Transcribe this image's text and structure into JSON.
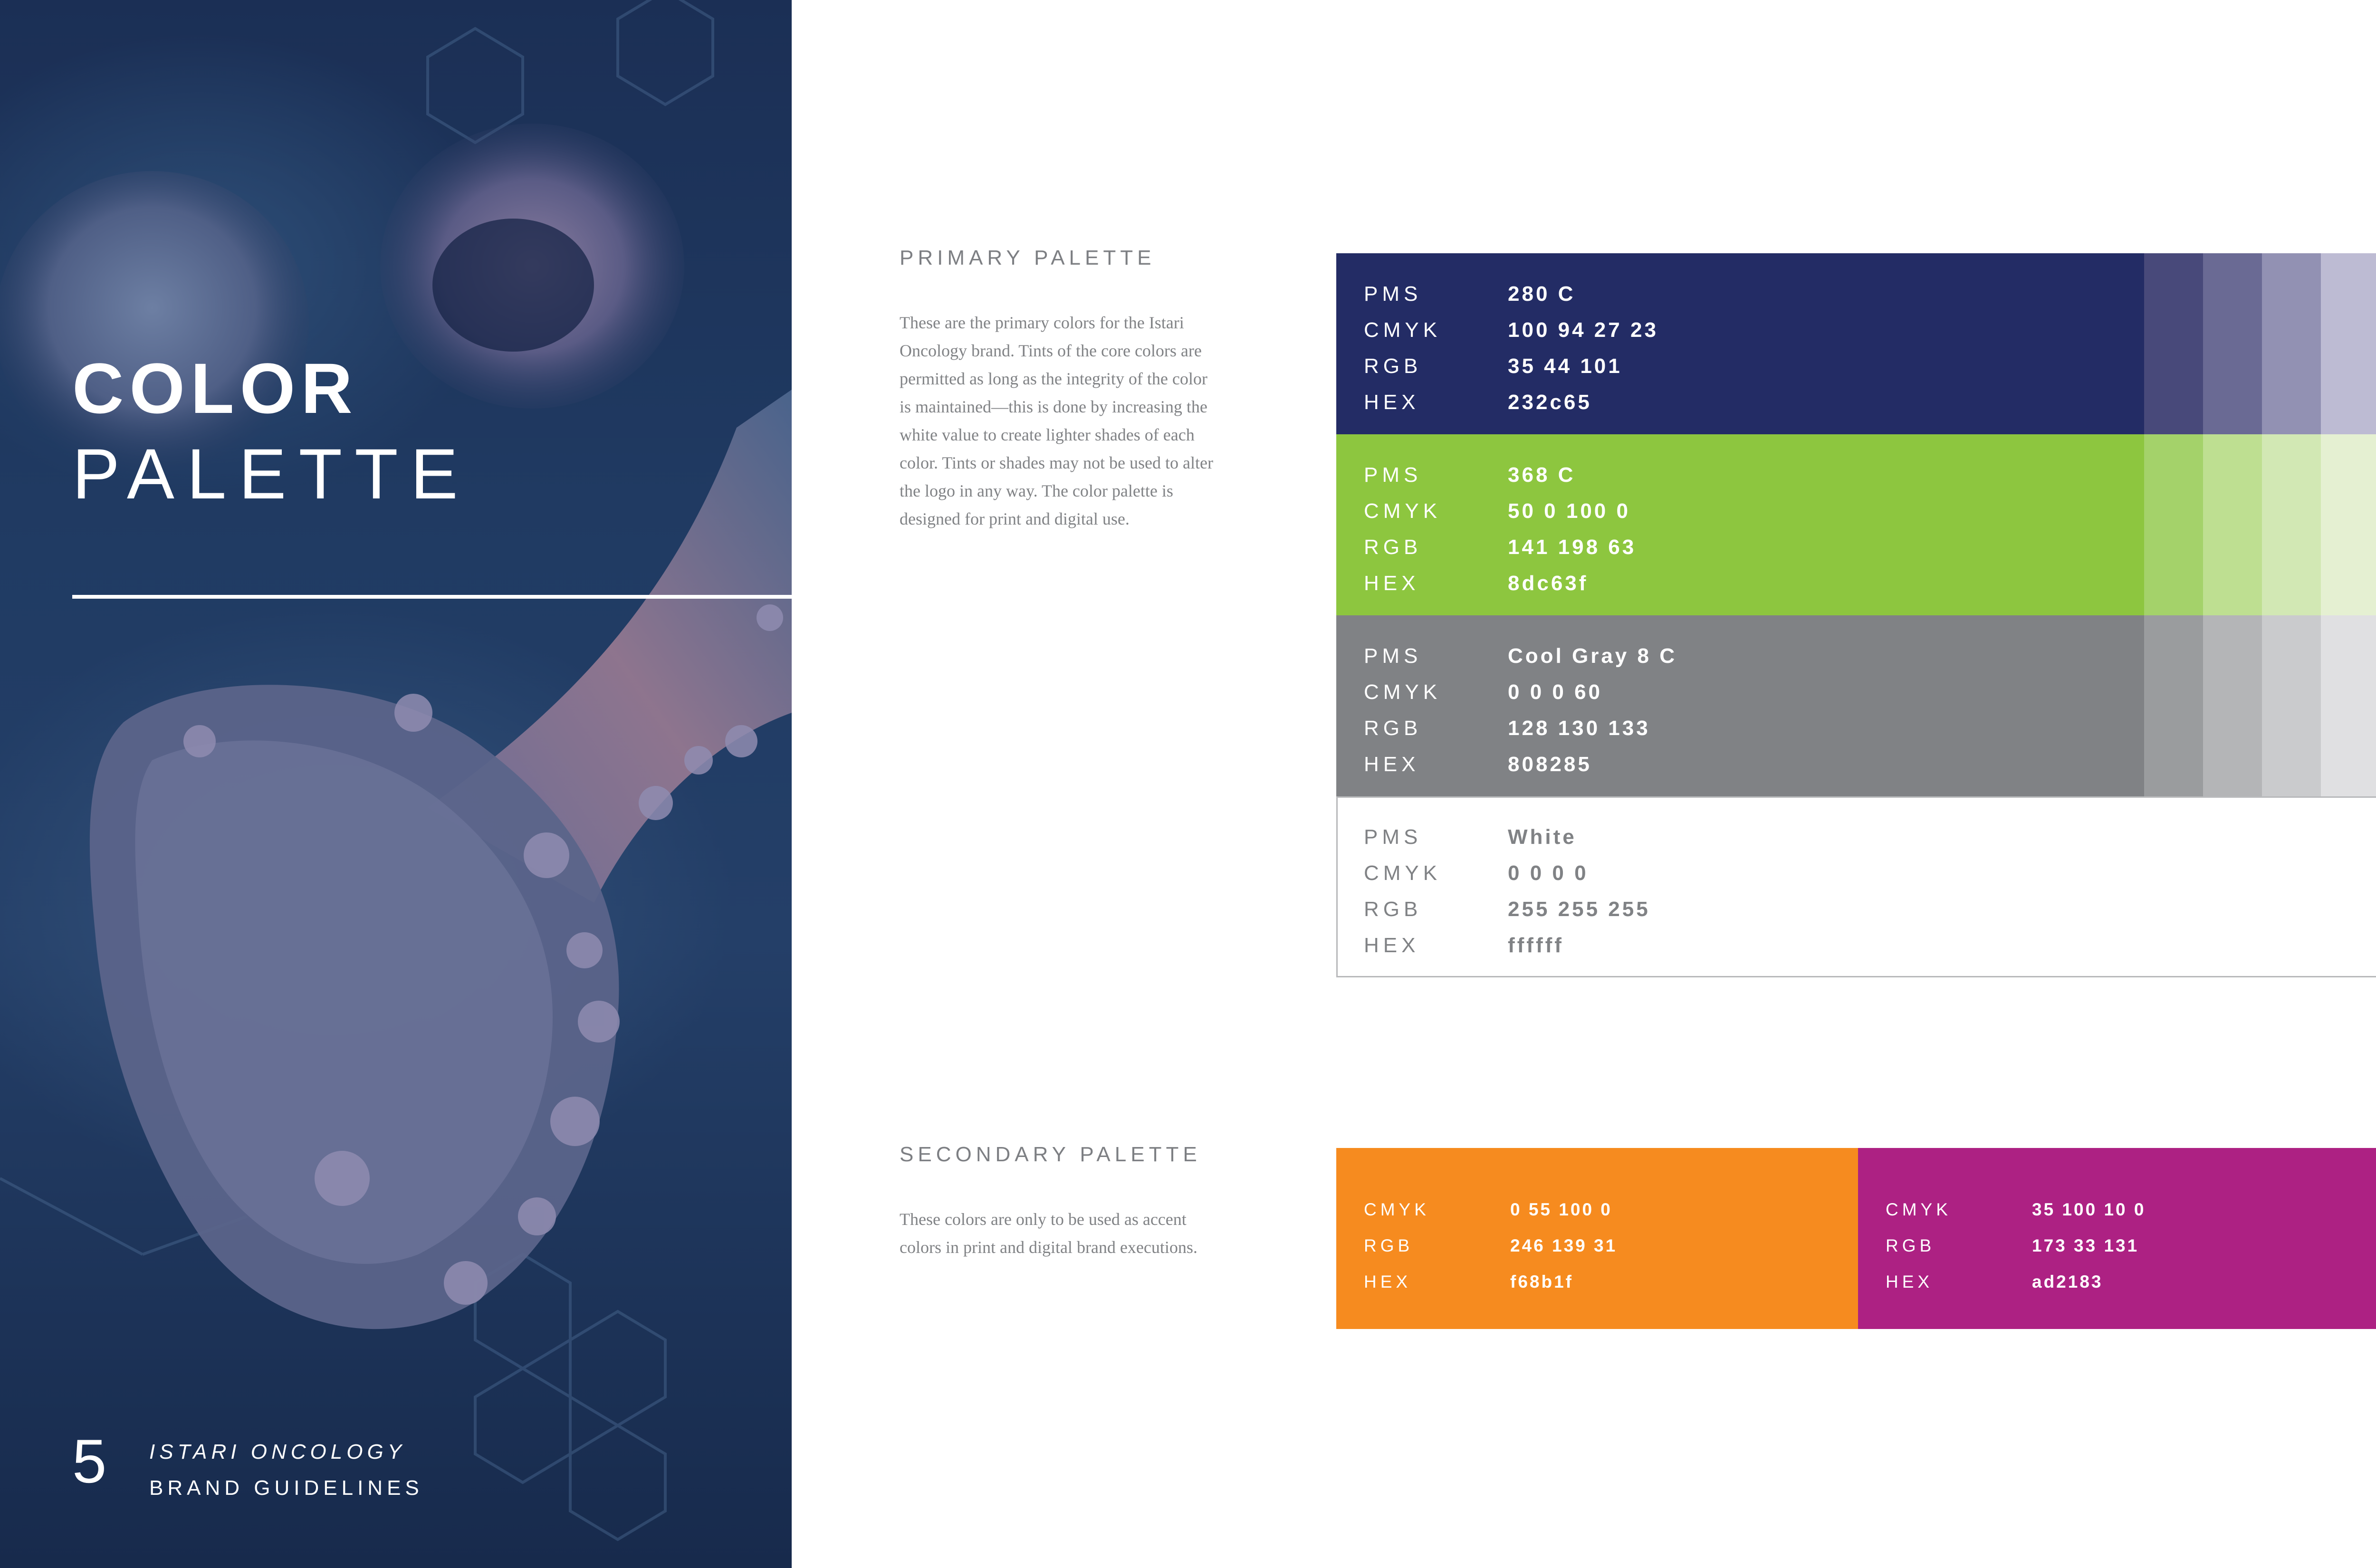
{
  "cover": {
    "title_line1": "COLOR",
    "title_line2": "PALETTE",
    "page_number": "5",
    "brand_line1": "ISTARI ONCOLOGY",
    "brand_line2": "BRAND GUIDELINES"
  },
  "primary": {
    "heading": "PRIMARY PALETTE",
    "description": "These are the primary colors for the Istari Oncology brand. Tints of the core colors are permitted as long as the integrity of the color is maintained—this is done by increasing the white value to create lighter shades of each color. Tints or shades may not be used to alter the logo in any way. The color palette is designed for print and digital use.",
    "swatches": [
      {
        "color": "#232c65",
        "text_color": "#ffffff",
        "tints": [
          "#48497a",
          "#6a6a94",
          "#9291b3",
          "#bdbbd3"
        ],
        "rows": [
          {
            "label": "PMS",
            "value": "280 C"
          },
          {
            "label": "CMYK",
            "value": "100 94 27 23"
          },
          {
            "label": "RGB",
            "value": "35 44 101"
          },
          {
            "label": "HEX",
            "value": "232c65"
          }
        ]
      },
      {
        "color": "#8dc63f",
        "text_color": "#ffffff",
        "tints": [
          "#a4d26a",
          "#bedf91",
          "#d2e8b4",
          "#e5f0d2"
        ],
        "rows": [
          {
            "label": "PMS",
            "value": "368 C"
          },
          {
            "label": "CMYK",
            "value": "50 0 100 0"
          },
          {
            "label": "RGB",
            "value": "141 198 63"
          },
          {
            "label": "HEX",
            "value": "8dc63f"
          }
        ]
      },
      {
        "color": "#808285",
        "text_color": "#ffffff",
        "tints": [
          "#9a9c9e",
          "#b4b5b7",
          "#cacbcd",
          "#e0e0e2"
        ],
        "rows": [
          {
            "label": "PMS",
            "value": "Cool Gray 8 C"
          },
          {
            "label": "CMYK",
            "value": "0 0 0 60"
          },
          {
            "label": "RGB",
            "value": "128 130 133"
          },
          {
            "label": "HEX",
            "value": "808285"
          }
        ]
      },
      {
        "color": "#ffffff",
        "text_color": "#808285",
        "tints": [],
        "rows": [
          {
            "label": "PMS",
            "value": "White"
          },
          {
            "label": "CMYK",
            "value": "0 0 0 0"
          },
          {
            "label": "RGB",
            "value": "255 255 255"
          },
          {
            "label": "HEX",
            "value": "ffffff"
          }
        ]
      }
    ]
  },
  "secondary": {
    "heading": "SECONDARY PALETTE",
    "description": "These colors are only to be used as accent colors in print and digital brand executions.",
    "swatches": [
      {
        "color": "#f68b1f",
        "rows": [
          {
            "label": "CMYK",
            "value": "0 55 100 0"
          },
          {
            "label": "RGB",
            "value": "246 139 31"
          },
          {
            "label": "HEX",
            "value": "f68b1f"
          }
        ]
      },
      {
        "color": "#ad2183",
        "rows": [
          {
            "label": "CMYK",
            "value": "35 100 10 0"
          },
          {
            "label": "RGB",
            "value": "173 33 131"
          },
          {
            "label": "HEX",
            "value": "ad2183"
          }
        ]
      }
    ]
  }
}
